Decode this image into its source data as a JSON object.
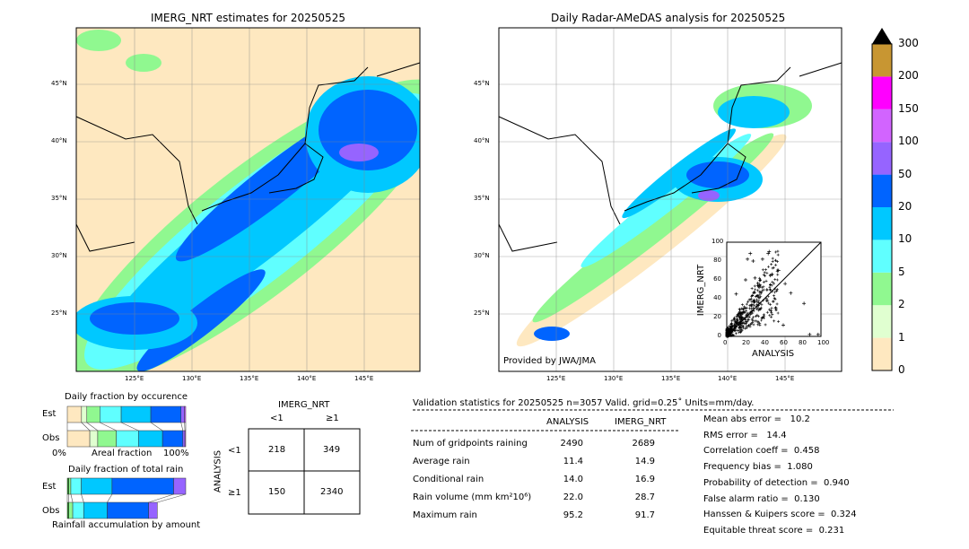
{
  "left_map": {
    "title": "IMERG_NRT estimates for 20250525"
  },
  "right_map": {
    "title": "Daily Radar-AMeDAS analysis for 20250525",
    "credit": "Provided by JWA/JMA"
  },
  "lat_labels": [
    "45°N",
    "40°N",
    "35°N",
    "30°N",
    "25°N"
  ],
  "lon_labels": [
    "125°E",
    "130°E",
    "135°E",
    "140°E",
    "145°E"
  ],
  "colorbar": {
    "levels": [
      "0",
      "1",
      "2",
      "5",
      "10",
      "20",
      "50",
      "100",
      "150",
      "200",
      "300"
    ],
    "colors": [
      "#fee8c0",
      "#e0ffd0",
      "#90f890",
      "#60ffff",
      "#00c8ff",
      "#0064ff",
      "#9664ff",
      "#d264ff",
      "#ff00ff",
      "#c89632"
    ]
  },
  "chart_data": [
    {
      "type": "scatter",
      "title": "",
      "xlabel": "ANALYSIS",
      "ylabel": "IMERG_NRT",
      "xlim": [
        0,
        100
      ],
      "ylim": [
        0,
        100
      ],
      "ticks": [
        "0",
        "20",
        "40",
        "60",
        "80",
        "100"
      ],
      "outliers": [
        [
          25,
          88
        ],
        [
          45,
          90
        ],
        [
          44,
          88
        ],
        [
          22,
          82
        ],
        [
          28,
          80
        ],
        [
          38,
          82
        ],
        [
          82,
          35
        ],
        [
          68,
          46
        ],
        [
          60,
          12
        ],
        [
          88,
          2
        ],
        [
          97,
          2
        ],
        [
          55,
          70
        ],
        [
          48,
          66
        ],
        [
          30,
          62
        ],
        [
          20,
          60
        ],
        [
          62,
          56
        ],
        [
          10,
          45
        ],
        [
          35,
          55
        ],
        [
          42,
          40
        ],
        [
          52,
          30
        ]
      ]
    },
    {
      "type": "bar",
      "title": "Daily fraction by occurence",
      "xlabel": "Areal fraction",
      "x_left": "0%",
      "x_right": "100%",
      "rows": [
        {
          "label": "Est",
          "fractions": [
            0.12,
            0.045,
            0.11,
            0.18,
            0.25,
            0.255,
            0.03,
            0.01
          ]
        },
        {
          "label": "Obs",
          "fractions": [
            0.19,
            0.067,
            0.157,
            0.187,
            0.203,
            0.172,
            0.017,
            0.007
          ]
        }
      ]
    },
    {
      "type": "bar",
      "title": "Daily fraction of total rain",
      "xlabel": "Rainfall accumulation by amount",
      "rows": [
        {
          "label": "Est",
          "fractions": [
            0.013,
            0.017,
            0.088,
            0.26,
            0.52,
            0.102
          ]
        },
        {
          "label": "Obs",
          "fractions": [
            0.013,
            0.033,
            0.093,
            0.198,
            0.35,
            0.073
          ]
        }
      ]
    }
  ],
  "contingency": {
    "title": "IMERG_NRT",
    "col_labels": [
      "<1",
      "≥1"
    ],
    "row_title": "ANALYSIS",
    "row_labels": [
      "<1",
      "≥1"
    ],
    "cells": [
      [
        "218",
        "349"
      ],
      [
        "150",
        "2340"
      ]
    ]
  },
  "stats": {
    "header": "Validation statistics for 20250525  n=3057 Valid. grid=0.25˚ Units=mm/day.",
    "columns": [
      "ANALYSIS",
      "IMERG_NRT"
    ],
    "rows": [
      {
        "label": "Num of gridpoints raining",
        "a": "2490",
        "b": "2689"
      },
      {
        "label": "Average rain",
        "a": "11.4",
        "b": "14.9"
      },
      {
        "label": "Conditional rain",
        "a": "14.0",
        "b": "16.9"
      },
      {
        "label": "Rain volume (mm km²10⁶)",
        "a": "22.0",
        "b": "28.7"
      },
      {
        "label": "Maximum rain",
        "a": "95.2",
        "b": "91.7"
      }
    ],
    "scores": [
      "Mean abs error =   10.2",
      "RMS error =   14.4",
      "Correlation coeff =  0.458",
      "Frequency bias =  1.080",
      "Probability of detection =  0.940",
      "False alarm ratio =  0.130",
      "Hanssen & Kuipers score =  0.324",
      "Equitable threat score =  0.231"
    ]
  }
}
